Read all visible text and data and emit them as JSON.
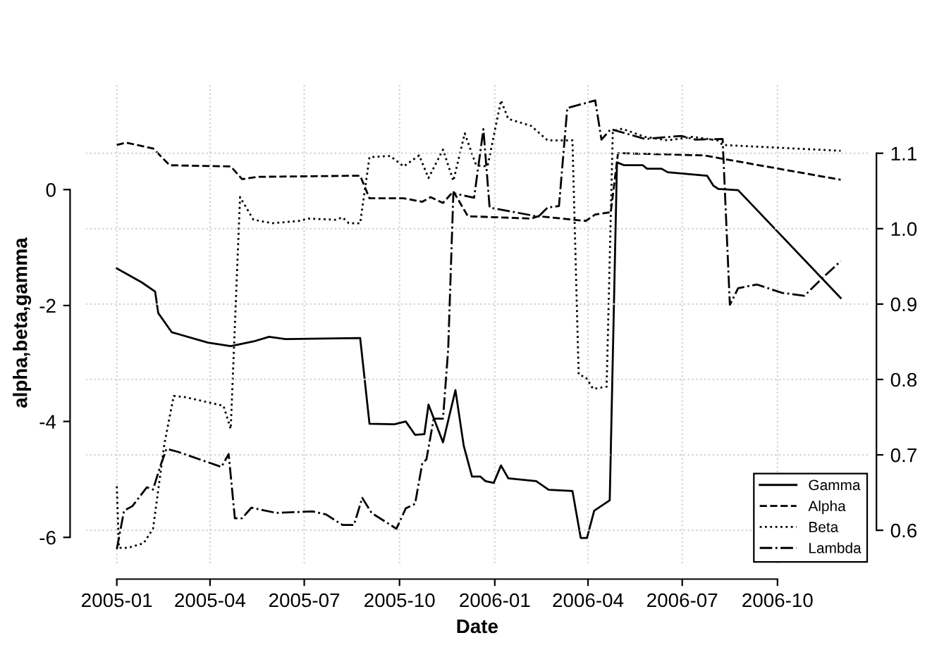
{
  "chart_data": {
    "type": "line",
    "xlabel": "Date",
    "ylabel": "alpha,beta,gamma",
    "xlim": [
      "2004-12-02",
      "2006-12-28"
    ],
    "xticks": [
      "2005-01",
      "2005-04",
      "2005-07",
      "2005-10",
      "2006-01",
      "2006-04",
      "2006-07",
      "2006-10"
    ],
    "ylim": [
      -6.45,
      1.85
    ],
    "yticks": [
      -6,
      -4,
      -2,
      0
    ],
    "y2lim": [
      0.556,
      1.194
    ],
    "y2ticks": [
      0.6,
      0.7,
      0.8,
      0.9,
      {
        "value": 1.0,
        "label": "1.0"
      },
      1.1
    ],
    "grid": true,
    "legend": "bottom right",
    "marker": "none",
    "series": [
      {
        "name": "Gamma",
        "color": "#000000",
        "line_style": "solid",
        "x": [
          "2005-01-01",
          "2005-01-25",
          "2005-02-07",
          "2005-02-10",
          "2005-02-23",
          "2005-03-30",
          "2005-04-21",
          "2005-05-13",
          "2005-05-28",
          "2005-06-13",
          "2005-08-24",
          "2005-09-02",
          "2005-09-26",
          "2005-10-07",
          "2005-10-16",
          "2005-10-25",
          "2005-10-29",
          "2005-11-12",
          "2005-11-24",
          "2005-12-02",
          "2005-12-10",
          "2005-12-18",
          "2005-12-23",
          "2005-12-31",
          "2006-01-07",
          "2006-01-14",
          "2006-02-10",
          "2006-02-22",
          "2006-03-17",
          "2006-03-25",
          "2006-03-31",
          "2006-04-07",
          "2006-04-22",
          "2006-04-29",
          "2006-05-06",
          "2006-05-24",
          "2006-05-28",
          "2006-06-11",
          "2006-06-17",
          "2006-07-25",
          "2006-07-31",
          "2006-08-05",
          "2006-08-24",
          "2006-12-01"
        ],
        "values": [
          -1.36,
          -1.6,
          -1.76,
          -2.13,
          -2.46,
          -2.64,
          -2.7,
          -2.62,
          -2.54,
          -2.58,
          -2.56,
          -4.04,
          -4.05,
          -4.0,
          -4.23,
          -4.22,
          -3.71,
          -4.36,
          -3.46,
          -4.42,
          -4.95,
          -4.95,
          -5.03,
          -5.06,
          -4.76,
          -4.98,
          -5.03,
          -5.18,
          -5.2,
          -6.01,
          -6.01,
          -5.54,
          -5.36,
          0.47,
          0.42,
          0.42,
          0.36,
          0.36,
          0.3,
          0.24,
          0.07,
          0.01,
          -0.01,
          -1.87
        ]
      },
      {
        "name": "Alpha",
        "color": "#000000",
        "line_style": "dashed",
        "x": [
          "2005-01-01",
          "2005-01-10",
          "2005-02-05",
          "2005-02-21",
          "2005-04-21",
          "2005-05-02",
          "2005-05-17",
          "2005-08-24",
          "2005-09-02",
          "2005-10-05",
          "2005-10-23",
          "2005-10-31",
          "2005-11-12",
          "2005-11-22",
          "2005-12-06",
          "2005-12-23",
          "2006-02-05",
          "2006-02-12",
          "2006-03-30",
          "2006-04-08",
          "2006-04-23",
          "2006-04-30",
          "2006-07-22",
          "2006-12-01"
        ],
        "values": [
          0.77,
          0.81,
          0.71,
          0.42,
          0.4,
          0.18,
          0.22,
          0.24,
          -0.15,
          -0.15,
          -0.21,
          -0.13,
          -0.23,
          -0.03,
          -0.46,
          -0.47,
          -0.5,
          -0.46,
          -0.54,
          -0.43,
          -0.39,
          0.63,
          0.59,
          0.17
        ]
      },
      {
        "name": "Beta",
        "color": "#000000",
        "line_style": "dotted",
        "x": [
          "2005-01-01",
          "2005-01-03",
          "2005-01-12",
          "2005-01-27",
          "2005-02-05",
          "2005-02-16",
          "2005-02-25",
          "2005-03-08",
          "2005-04-14",
          "2005-04-21",
          "2005-04-30",
          "2005-05-13",
          "2005-05-31",
          "2005-06-26",
          "2005-07-05",
          "2005-07-31",
          "2005-08-07",
          "2005-08-13",
          "2005-08-24",
          "2005-09-02",
          "2005-09-22",
          "2005-10-05",
          "2005-10-20",
          "2005-10-29",
          "2005-11-12",
          "2005-11-22",
          "2005-12-03",
          "2005-12-14",
          "2005-12-25",
          "2006-01-07",
          "2006-01-14",
          "2006-02-05",
          "2006-02-21",
          "2006-03-17",
          "2006-03-23",
          "2006-03-30",
          "2006-04-06",
          "2006-04-19",
          "2006-04-25",
          "2006-05-04",
          "2006-05-26",
          "2006-06-17",
          "2006-07-11",
          "2006-08-04",
          "2006-08-09",
          "2006-12-01"
        ],
        "values": [
          -5.12,
          -6.18,
          -6.18,
          -6.1,
          -5.85,
          -4.38,
          -3.56,
          -3.58,
          -3.73,
          -4.13,
          -0.13,
          -0.52,
          -0.58,
          -0.54,
          -0.5,
          -0.52,
          -0.48,
          -0.58,
          -0.58,
          0.56,
          0.58,
          0.4,
          0.59,
          0.2,
          0.69,
          0.15,
          0.97,
          0.42,
          0.4,
          1.54,
          1.22,
          1.1,
          0.85,
          0.85,
          -3.19,
          -3.24,
          -3.44,
          -3.4,
          1.01,
          1.05,
          0.91,
          0.85,
          0.91,
          0.85,
          0.77,
          0.67
        ]
      },
      {
        "name": "Lambda",
        "color": "#000000",
        "line_style": "dashdot",
        "axis": "y2",
        "x": [
          "2005-01-01",
          "2005-01-08",
          "2005-01-16",
          "2005-01-30",
          "2005-02-05",
          "2005-02-12",
          "2005-02-18",
          "2005-03-01",
          "2005-04-12",
          "2005-04-19",
          "2005-04-25",
          "2005-05-02",
          "2005-05-11",
          "2005-06-04",
          "2005-07-09",
          "2005-07-22",
          "2005-08-07",
          "2005-08-18",
          "2005-08-26",
          "2005-09-04",
          "2005-09-28",
          "2005-10-07",
          "2005-10-16",
          "2005-10-23",
          "2005-10-27",
          "2005-11-03",
          "2005-11-12",
          "2005-11-17",
          "2005-11-22",
          "2005-12-12",
          "2005-12-21",
          "2005-12-27",
          "2006-02-12",
          "2006-02-21",
          "2006-03-04",
          "2006-03-12",
          "2006-04-08",
          "2006-04-14",
          "2006-04-23",
          "2006-05-26",
          "2006-06-30",
          "2006-07-14",
          "2006-08-09",
          "2006-08-16",
          "2006-08-24",
          "2006-09-11",
          "2006-10-05",
          "2006-10-27",
          "2006-11-13",
          "2006-12-01"
        ],
        "values": [
          0.575,
          0.626,
          0.632,
          0.657,
          0.654,
          0.685,
          0.708,
          0.704,
          0.684,
          0.701,
          0.616,
          0.616,
          0.63,
          0.623,
          0.625,
          0.621,
          0.607,
          0.607,
          0.643,
          0.623,
          0.602,
          0.629,
          0.635,
          0.689,
          0.694,
          0.748,
          0.748,
          0.84,
          1.047,
          1.041,
          1.132,
          1.028,
          1.016,
          1.028,
          1.03,
          1.16,
          1.17,
          1.118,
          1.132,
          1.119,
          1.123,
          1.118,
          1.119,
          0.899,
          0.921,
          0.926,
          0.915,
          0.911,
          0.934,
          0.957
        ]
      }
    ]
  }
}
